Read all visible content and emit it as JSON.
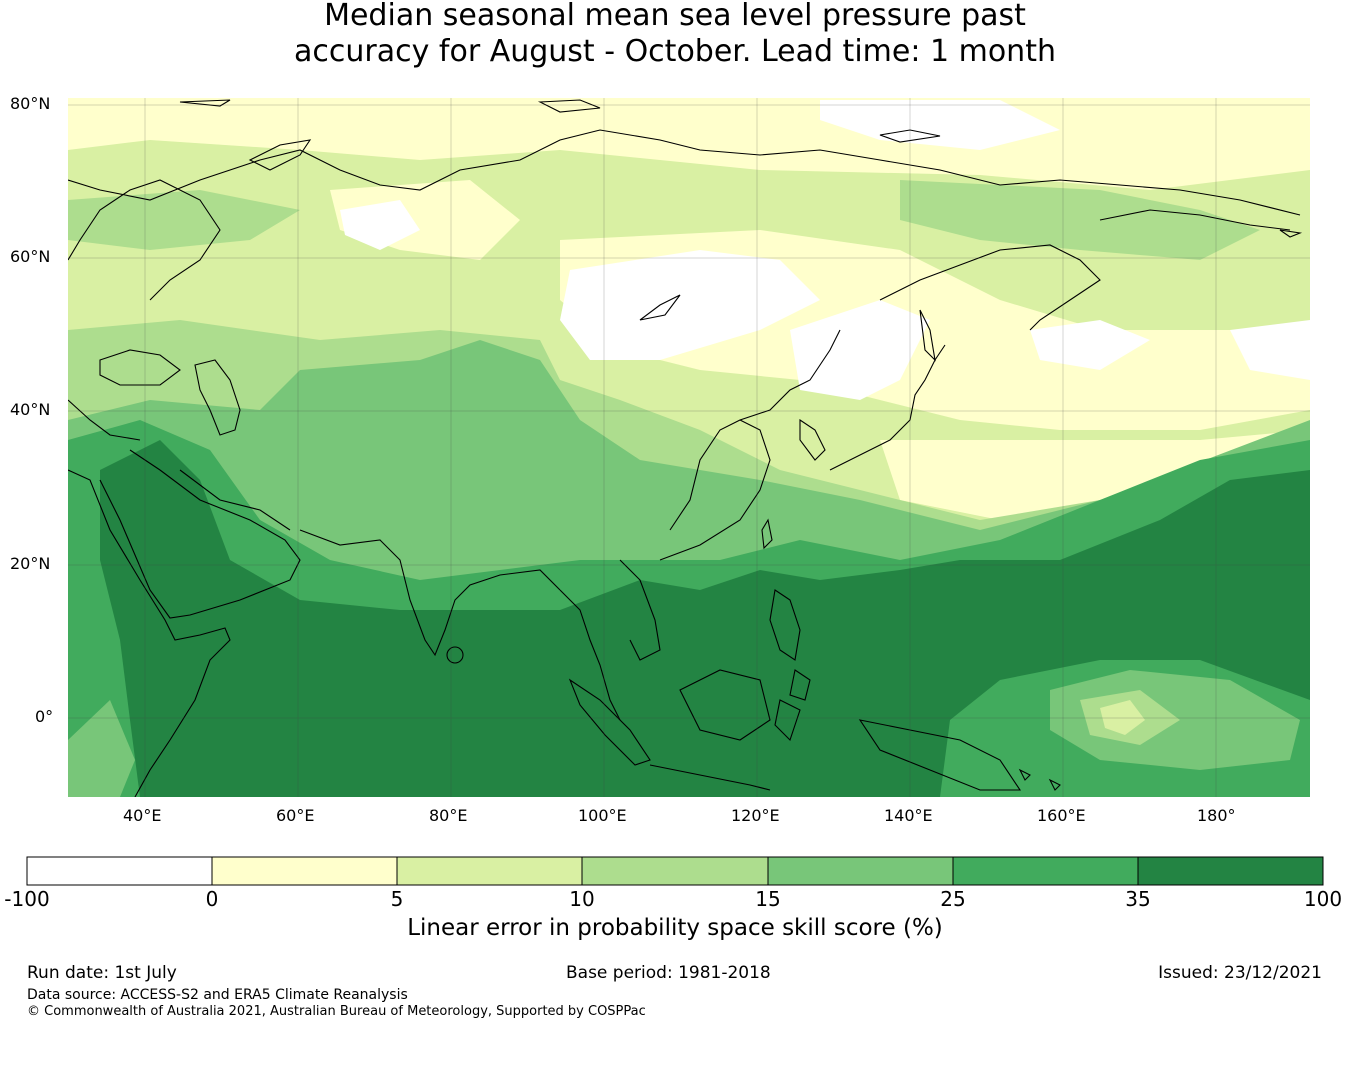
{
  "title": {
    "line1": "Median seasonal mean sea level pressure past",
    "line2": "accuracy for August - October. Lead time: 1 month"
  },
  "map": {
    "lat_labels": [
      "80°N",
      "60°N",
      "40°N",
      "20°N",
      "0°"
    ],
    "lon_labels": [
      "40°E",
      "60°E",
      "80°E",
      "100°E",
      "120°E",
      "140°E",
      "160°E",
      "180°"
    ]
  },
  "colorbar": {
    "title": "Linear error in probability space skill score (%)",
    "ticks": [
      "-100",
      "0",
      "5",
      "10",
      "15",
      "25",
      "35",
      "100"
    ],
    "colors": [
      "#ffffff",
      "#ffffcc",
      "#d9f0a3",
      "#addd8e",
      "#78c679",
      "#41ab5d",
      "#238443"
    ]
  },
  "footer": {
    "run_date": "Run date: 1st July",
    "base_period": "Base period: 1981-2018",
    "issued": "Issued: 23/12/2021",
    "data_source": "Data source: ACCESS-S2 and ERA5 Climate Reanalysis",
    "copyright": "© Commonwealth of Australia 2021, Australian Bureau of Meteorology, Supported by COSPPac"
  }
}
